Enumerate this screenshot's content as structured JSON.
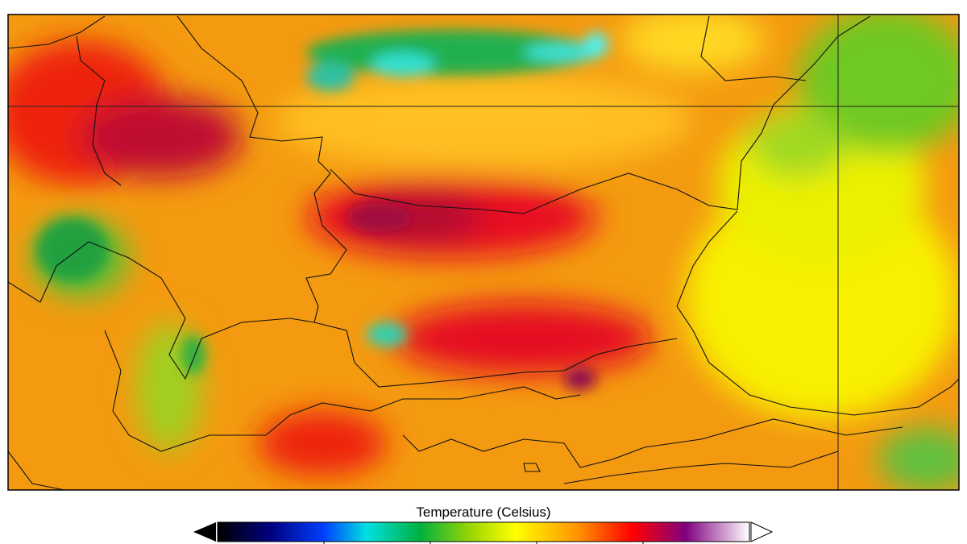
{
  "colorbar": {
    "title": "Temperature  (Celsius)"
  }
}
